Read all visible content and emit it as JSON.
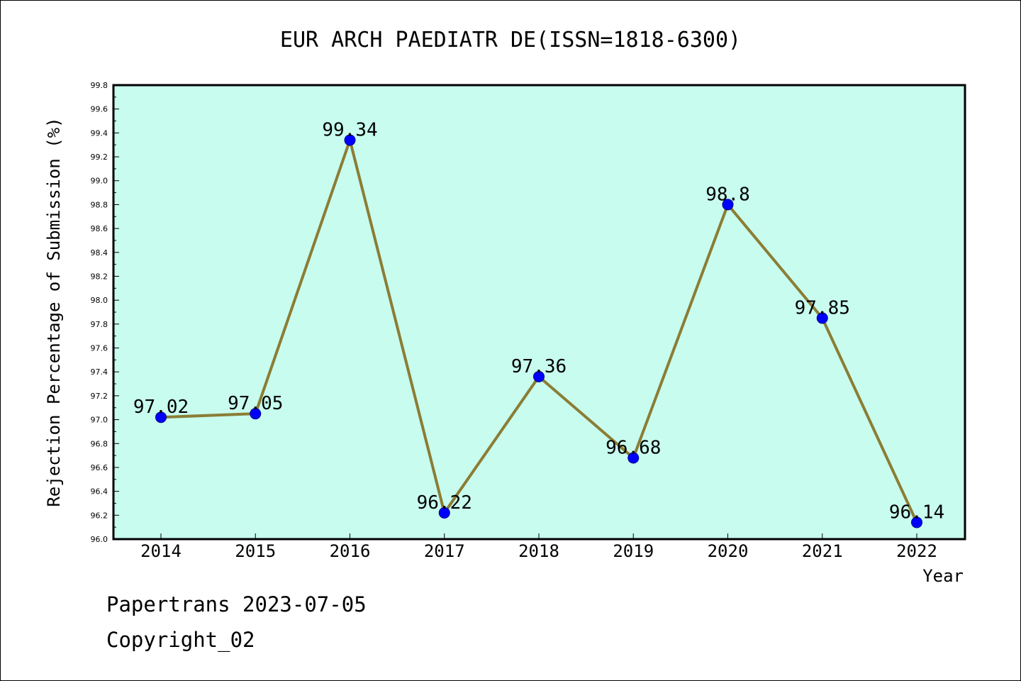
{
  "chart_data": {
    "type": "line",
    "title": "EUR ARCH PAEDIATR DE(ISSN=1818-6300)",
    "xlabel": "Year",
    "ylabel": "Rejection Percentage of Submission (%)",
    "categories": [
      "2014",
      "2015",
      "2016",
      "2017",
      "2018",
      "2019",
      "2020",
      "2021",
      "2022"
    ],
    "values": [
      97.02,
      97.05,
      99.34,
      96.22,
      97.36,
      96.68,
      98.8,
      97.85,
      96.14
    ],
    "value_labels": [
      "97.02",
      "97.05",
      "99.34",
      "96.22",
      "97.36",
      "96.68",
      "98.8",
      "97.85",
      "96.14"
    ],
    "ylim": [
      96.0,
      99.8
    ],
    "yticks": [
      "96.0",
      "96.2",
      "96.4",
      "96.6",
      "96.8",
      "97.0",
      "97.2",
      "97.4",
      "97.6",
      "97.8",
      "98.0",
      "98.2",
      "98.4",
      "98.6",
      "98.8",
      "99.0",
      "99.2",
      "99.4",
      "99.6",
      "99.8"
    ],
    "grid": false,
    "colors": {
      "plot_bg": "#c8fcee",
      "line": "#8b7d35",
      "marker": "#0000ff"
    }
  },
  "footer": {
    "line1": "Papertrans 2023-07-05",
    "line2": "Copyright_02"
  }
}
